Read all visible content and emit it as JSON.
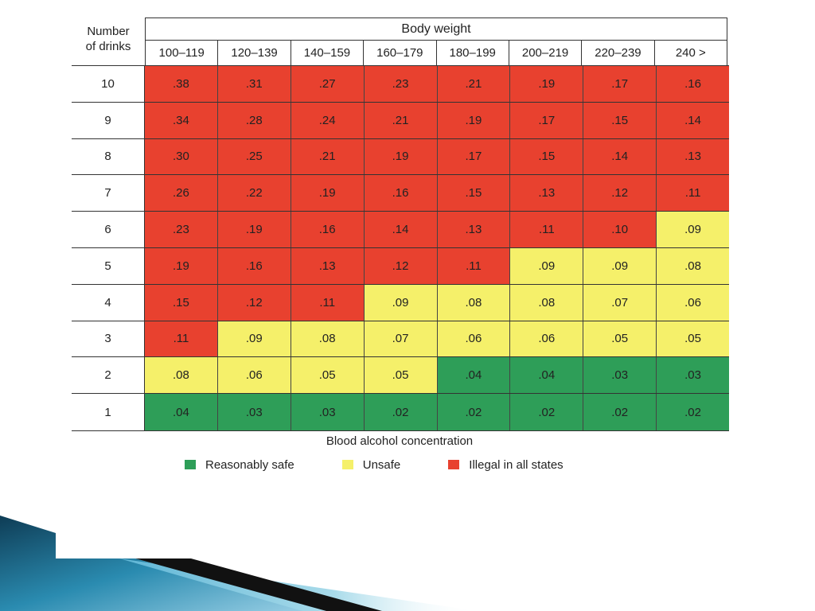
{
  "chart_data": {
    "type": "table",
    "header_title": "Body weight",
    "row_header": [
      "Number",
      "of drinks"
    ],
    "columns": [
      "100–119",
      "120–139",
      "140–159",
      "160–179",
      "180–199",
      "200–219",
      "220–239",
      "240 >"
    ],
    "rows": [
      {
        "drinks": "10",
        "values": [
          ".38",
          ".31",
          ".27",
          ".23",
          ".21",
          ".19",
          ".17",
          ".16"
        ],
        "zones": [
          "illegal",
          "illegal",
          "illegal",
          "illegal",
          "illegal",
          "illegal",
          "illegal",
          "illegal"
        ]
      },
      {
        "drinks": "9",
        "values": [
          ".34",
          ".28",
          ".24",
          ".21",
          ".19",
          ".17",
          ".15",
          ".14"
        ],
        "zones": [
          "illegal",
          "illegal",
          "illegal",
          "illegal",
          "illegal",
          "illegal",
          "illegal",
          "illegal"
        ]
      },
      {
        "drinks": "8",
        "values": [
          ".30",
          ".25",
          ".21",
          ".19",
          ".17",
          ".15",
          ".14",
          ".13"
        ],
        "zones": [
          "illegal",
          "illegal",
          "illegal",
          "illegal",
          "illegal",
          "illegal",
          "illegal",
          "illegal"
        ]
      },
      {
        "drinks": "7",
        "values": [
          ".26",
          ".22",
          ".19",
          ".16",
          ".15",
          ".13",
          ".12",
          ".11"
        ],
        "zones": [
          "illegal",
          "illegal",
          "illegal",
          "illegal",
          "illegal",
          "illegal",
          "illegal",
          "illegal"
        ]
      },
      {
        "drinks": "6",
        "values": [
          ".23",
          ".19",
          ".16",
          ".14",
          ".13",
          ".11",
          ".10",
          ".09"
        ],
        "zones": [
          "illegal",
          "illegal",
          "illegal",
          "illegal",
          "illegal",
          "illegal",
          "illegal",
          "unsafe"
        ]
      },
      {
        "drinks": "5",
        "values": [
          ".19",
          ".16",
          ".13",
          ".12",
          ".11",
          ".09",
          ".09",
          ".08"
        ],
        "zones": [
          "illegal",
          "illegal",
          "illegal",
          "illegal",
          "illegal",
          "unsafe",
          "unsafe",
          "unsafe"
        ]
      },
      {
        "drinks": "4",
        "values": [
          ".15",
          ".12",
          ".11",
          ".09",
          ".08",
          ".08",
          ".07",
          ".06"
        ],
        "zones": [
          "illegal",
          "illegal",
          "illegal",
          "unsafe",
          "unsafe",
          "unsafe",
          "unsafe",
          "unsafe"
        ]
      },
      {
        "drinks": "3",
        "values": [
          ".11",
          ".09",
          ".08",
          ".07",
          ".06",
          ".06",
          ".05",
          ".05"
        ],
        "zones": [
          "illegal",
          "unsafe",
          "unsafe",
          "unsafe",
          "unsafe",
          "unsafe",
          "unsafe",
          "unsafe"
        ]
      },
      {
        "drinks": "2",
        "values": [
          ".08",
          ".06",
          ".05",
          ".05",
          ".04",
          ".04",
          ".03",
          ".03"
        ],
        "zones": [
          "unsafe",
          "unsafe",
          "unsafe",
          "unsafe",
          "safe",
          "safe",
          "safe",
          "safe"
        ]
      },
      {
        "drinks": "1",
        "values": [
          ".04",
          ".03",
          ".03",
          ".02",
          ".02",
          ".02",
          ".02",
          ".02"
        ],
        "zones": [
          "safe",
          "safe",
          "safe",
          "safe",
          "safe",
          "safe",
          "safe",
          "safe"
        ]
      }
    ],
    "footer_title": "Blood alcohol concentration",
    "legend": [
      {
        "zone": "safe",
        "label": "Reasonably safe",
        "color": "#2e9e58"
      },
      {
        "zone": "unsafe",
        "label": "Unsafe",
        "color": "#f5f06a"
      },
      {
        "zone": "illegal",
        "label": "Illegal in all states",
        "color": "#e8412f"
      }
    ]
  }
}
